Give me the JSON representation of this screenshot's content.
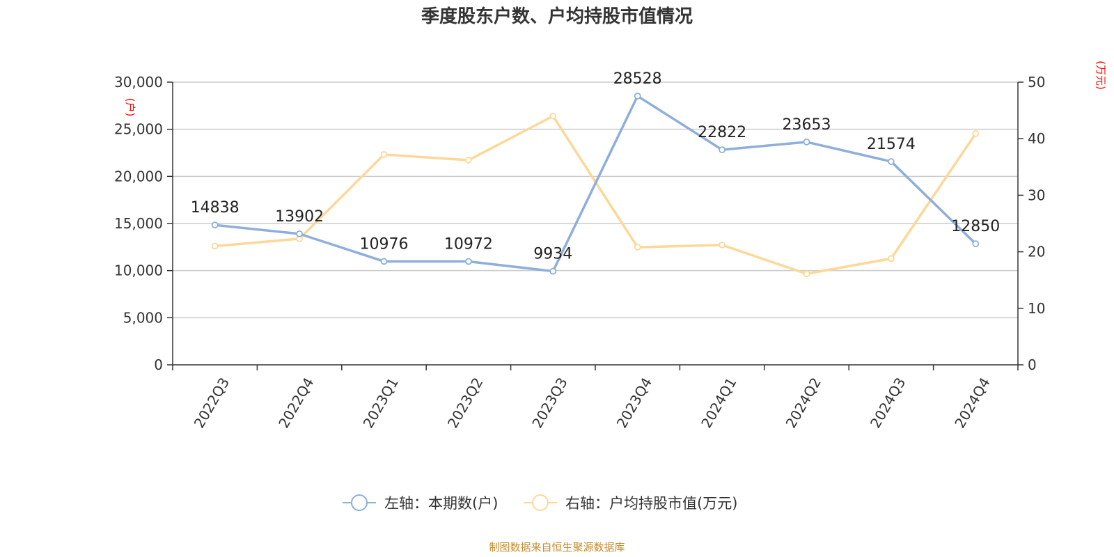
{
  "chart_data": {
    "type": "line",
    "title": "季度股东户数、户均持股市值情况",
    "categories": [
      "2022Q3",
      "2022Q4",
      "2023Q1",
      "2023Q2",
      "2023Q3",
      "2023Q4",
      "2024Q1",
      "2024Q2",
      "2024Q3",
      "2024Q4"
    ],
    "y_left": {
      "unit": "(户)",
      "range": [
        0,
        30000
      ],
      "ticks": [
        0,
        5000,
        10000,
        15000,
        20000,
        25000,
        30000
      ],
      "tick_labels": [
        "0",
        "5,000",
        "10,000",
        "15,000",
        "20,000",
        "25,000",
        "30,000"
      ]
    },
    "y_right": {
      "unit": "(万元)",
      "range": [
        0,
        50
      ],
      "ticks": [
        0,
        10,
        20,
        30,
        40,
        50
      ],
      "tick_labels": [
        "0",
        "10",
        "20",
        "30",
        "40",
        "50"
      ]
    },
    "grid": true,
    "legend_position": "bottom-center",
    "series": [
      {
        "name": "左轴：本期数(户)",
        "axis": "left",
        "color": "#8eaedb",
        "values": [
          14838,
          13902,
          10976,
          10972,
          9934,
          28528,
          22822,
          23653,
          21574,
          12850
        ],
        "labels": [
          "14838",
          "13902",
          "10976",
          "10972",
          "9934",
          "28528",
          "22822",
          "23653",
          "21574",
          "12850"
        ]
      },
      {
        "name": "右轴：户均持股市值(万元)",
        "axis": "right",
        "color": "#fcd898",
        "values": [
          21.0,
          22.3,
          37.2,
          36.2,
          44.0,
          20.8,
          21.2,
          16.1,
          18.8,
          40.9
        ]
      }
    ],
    "source": "制图数据来自恒生聚源数据库"
  }
}
